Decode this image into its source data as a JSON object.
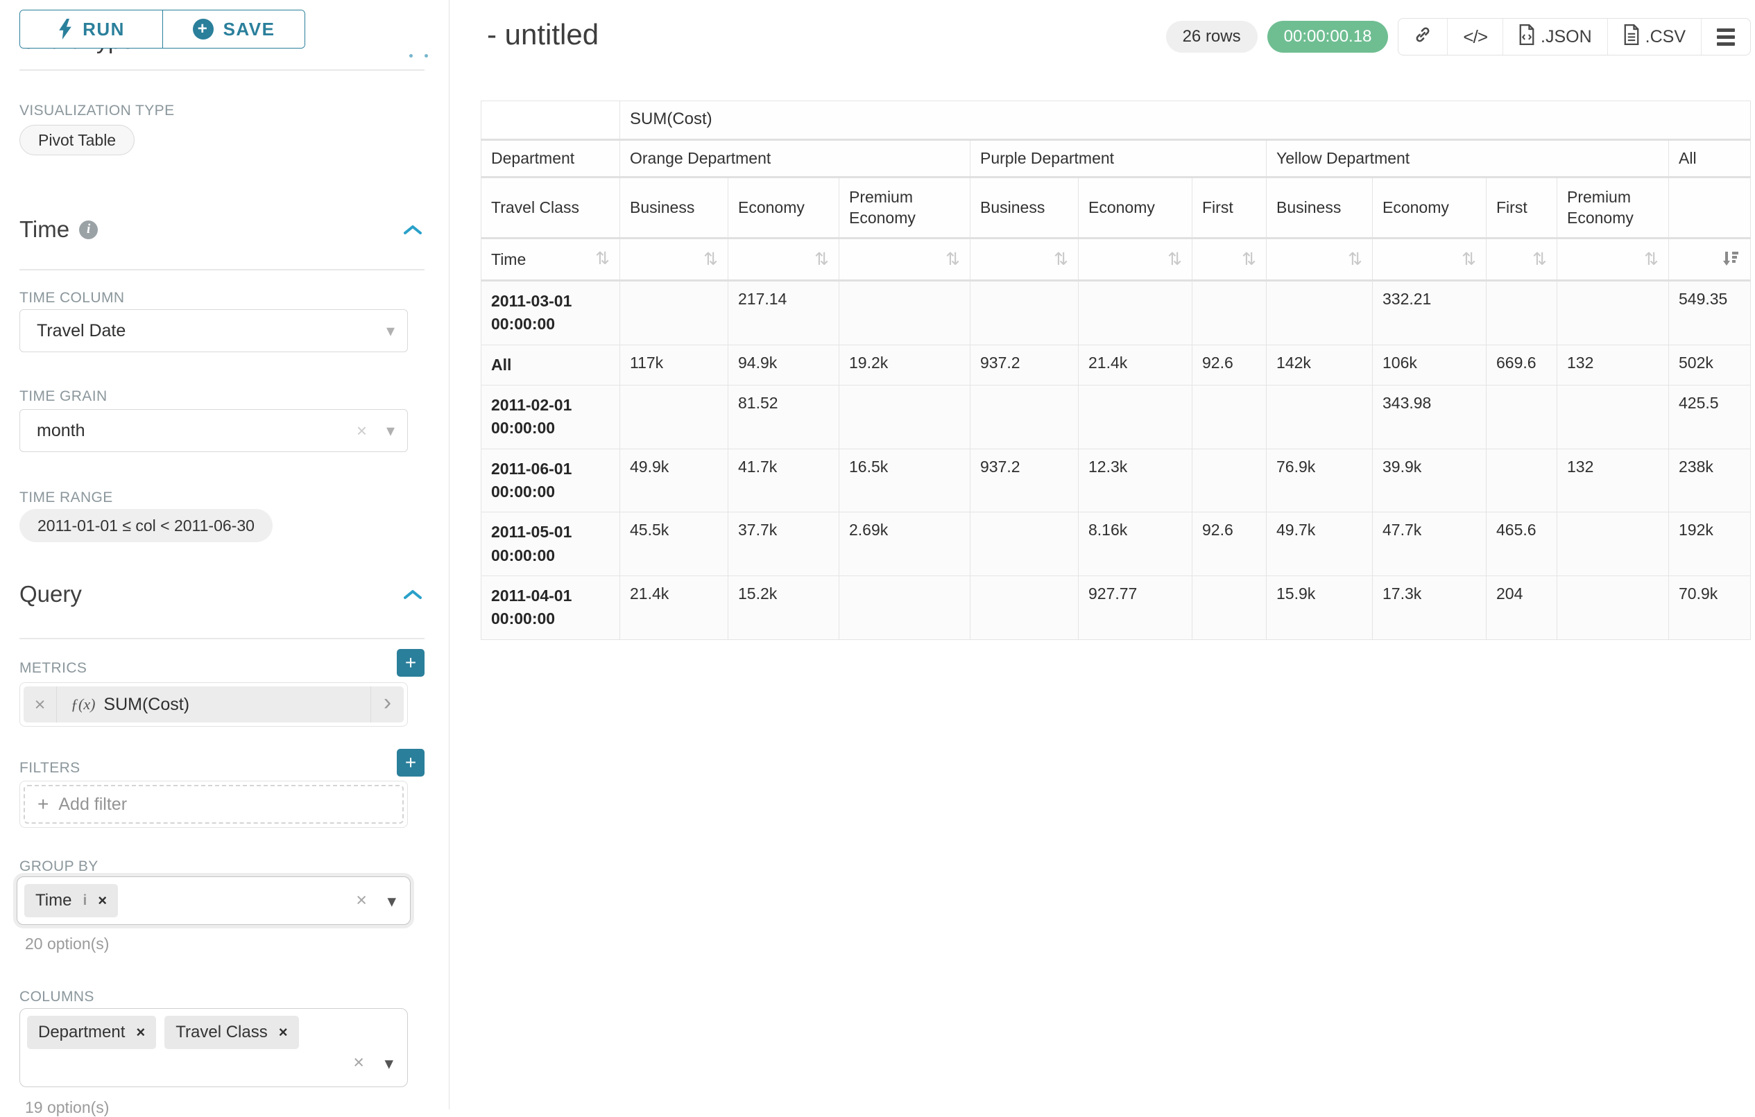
{
  "colors": {
    "primary_teal": "#2a7f9b",
    "chevron_blue": "#2aa1c9",
    "timer_green": "#6fbe92"
  },
  "sidebar": {
    "run_label": "RUN",
    "save_label": "SAVE",
    "chart_type_title": "Chart Type",
    "visualization_type": {
      "label": "VISUALIZATION TYPE",
      "value": "Pivot Table"
    },
    "time": {
      "title": "Time",
      "time_column": {
        "label": "TIME COLUMN",
        "value": "Travel Date"
      },
      "time_grain": {
        "label": "TIME GRAIN",
        "value": "month"
      },
      "time_range": {
        "label": "TIME RANGE",
        "value": "2011-01-01 ≤ col < 2011-06-30"
      }
    },
    "query": {
      "title": "Query",
      "metrics": {
        "label": "METRICS",
        "fx": "ƒ(x)",
        "value": "SUM(Cost)"
      },
      "filters": {
        "label": "FILTERS",
        "placeholder": "Add filter"
      },
      "group_by": {
        "label": "GROUP BY",
        "chips": [
          "Time"
        ],
        "options_hint": "20 option(s)"
      },
      "columns": {
        "label": "COLUMNS",
        "chips": [
          "Department",
          "Travel Class"
        ],
        "options_hint": "19 option(s)"
      }
    }
  },
  "header": {
    "title": "- untitled",
    "rows_badge": "26 rows",
    "timer": "00:00:00.18",
    "code_label": "</>",
    "export_json": ".JSON",
    "export_csv": ".CSV"
  },
  "chart_data": {
    "type": "table",
    "metric_header": "SUM(Cost)",
    "row_axis_labels": {
      "department": "Department",
      "travel_class": "Travel Class",
      "time": "Time"
    },
    "column_groups": [
      {
        "label": "Orange Department",
        "classes": [
          "Business",
          "Economy",
          "Premium Economy"
        ]
      },
      {
        "label": "Purple Department",
        "classes": [
          "Business",
          "Economy",
          "First"
        ]
      },
      {
        "label": "Yellow Department",
        "classes": [
          "Business",
          "Economy",
          "First",
          "Premium Economy"
        ]
      },
      {
        "label": "All",
        "classes": [
          ""
        ]
      }
    ],
    "sort": {
      "column": "All",
      "direction": "desc"
    },
    "rows": [
      {
        "label": "2011-03-01 00:00:00",
        "values": [
          "",
          "217.14",
          "",
          "",
          "",
          "",
          "",
          "332.21",
          "",
          "",
          "549.35"
        ]
      },
      {
        "label": "All",
        "values": [
          "117k",
          "94.9k",
          "19.2k",
          "937.2",
          "21.4k",
          "92.6",
          "142k",
          "106k",
          "669.6",
          "132",
          "502k"
        ]
      },
      {
        "label": "2011-02-01 00:00:00",
        "values": [
          "",
          "81.52",
          "",
          "",
          "",
          "",
          "",
          "343.98",
          "",
          "",
          "425.5"
        ]
      },
      {
        "label": "2011-06-01 00:00:00",
        "values": [
          "49.9k",
          "41.7k",
          "16.5k",
          "937.2",
          "12.3k",
          "",
          "76.9k",
          "39.9k",
          "",
          "132",
          "238k"
        ]
      },
      {
        "label": "2011-05-01 00:00:00",
        "values": [
          "45.5k",
          "37.7k",
          "2.69k",
          "",
          "8.16k",
          "92.6",
          "49.7k",
          "47.7k",
          "465.6",
          "",
          "192k"
        ]
      },
      {
        "label": "2011-04-01 00:00:00",
        "values": [
          "21.4k",
          "15.2k",
          "",
          "",
          "927.77",
          "",
          "15.9k",
          "17.3k",
          "204",
          "",
          "70.9k"
        ]
      }
    ]
  }
}
